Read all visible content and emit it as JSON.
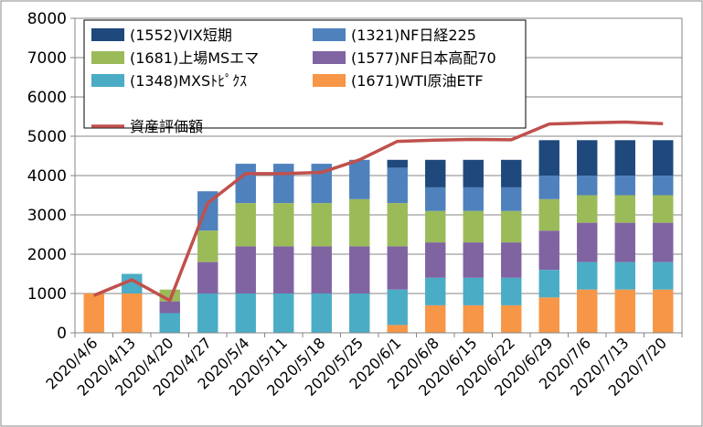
{
  "chart_data": {
    "type": "bar",
    "stacked": true,
    "title": "",
    "xlabel": "",
    "ylabel": "",
    "ylim": [
      0,
      8000
    ],
    "ytick_step": 1000,
    "grid": true,
    "legend_position": "top-left",
    "categories": [
      "2020/4/6",
      "2020/4/13",
      "2020/4/20",
      "2020/4/27",
      "2020/5/4",
      "2020/5/11",
      "2020/5/18",
      "2020/5/25",
      "2020/6/1",
      "2020/6/8",
      "2020/6/15",
      "2020/6/22",
      "2020/6/29",
      "2020/7/6",
      "2020/7/13",
      "2020/7/20"
    ],
    "yticks": [
      "0",
      "1000",
      "2000",
      "3000",
      "4000",
      "5000",
      "6000",
      "7000",
      "8000"
    ],
    "series": [
      {
        "name": "(1671)WTI原油ETF",
        "color": "#f79646",
        "values": [
          1000,
          1000,
          0,
          0,
          0,
          0,
          0,
          0,
          200,
          700,
          700,
          700,
          900,
          1100,
          1100,
          1100
        ]
      },
      {
        "name": "(1348)MXSﾄﾋﾟｸｽ",
        "color": "#4bacc6",
        "values": [
          0,
          500,
          500,
          1000,
          1000,
          1000,
          1000,
          1000,
          900,
          700,
          700,
          700,
          700,
          700,
          700,
          700
        ]
      },
      {
        "name": "(1577)NF日本高配70",
        "color": "#8064a2",
        "values": [
          0,
          0,
          300,
          800,
          1200,
          1200,
          1200,
          1200,
          1100,
          900,
          900,
          900,
          1000,
          1000,
          1000,
          1000
        ]
      },
      {
        "name": "(1681)上場MSエマ",
        "color": "#9bbb59",
        "values": [
          0,
          0,
          300,
          800,
          1100,
          1100,
          1100,
          1200,
          1100,
          800,
          800,
          800,
          800,
          700,
          700,
          700
        ]
      },
      {
        "name": "(1321)NF日経225",
        "color": "#4f81bd",
        "values": [
          0,
          0,
          0,
          1000,
          1000,
          1000,
          1000,
          1000,
          900,
          600,
          600,
          600,
          600,
          500,
          500,
          500
        ]
      },
      {
        "name": "(1552)VIX短期",
        "color": "#1f497d",
        "values": [
          0,
          0,
          0,
          0,
          0,
          0,
          0,
          0,
          200,
          700,
          700,
          700,
          900,
          900,
          900,
          900
        ]
      }
    ],
    "line_series": {
      "name": "資産評価額",
      "color": "#c0504d",
      "values": [
        950,
        1350,
        820,
        3300,
        4050,
        4050,
        4080,
        4400,
        4870,
        4900,
        4920,
        4910,
        5310,
        5340,
        5360,
        5320
      ]
    },
    "legend_order": [
      "(1552)VIX短期",
      "(1321)NF日経225",
      "(1681)上場MSエマ",
      "(1577)NF日本高配70",
      "(1348)MXSﾄﾋﾟｸｽ",
      "(1671)WTI原油ETF",
      "資産評価額"
    ]
  }
}
